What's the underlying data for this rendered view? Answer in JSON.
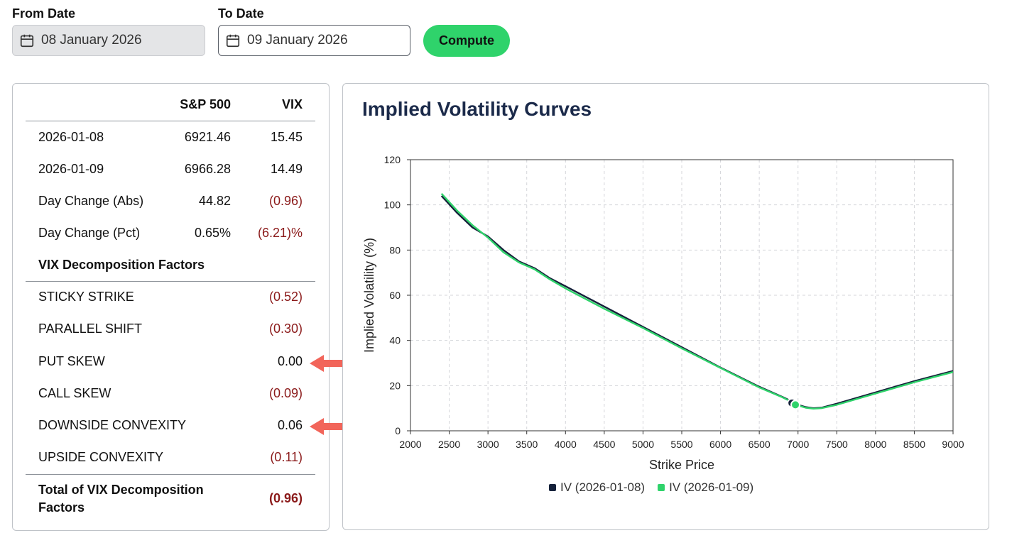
{
  "controls": {
    "from_label": "From Date",
    "from_value": "08 January 2026",
    "to_label": "To Date",
    "to_value": "09 January 2026",
    "compute_label": "Compute"
  },
  "table": {
    "headers": [
      "",
      "S&P 500",
      "VIX"
    ],
    "rows": [
      {
        "label": "2026-01-08",
        "sp": "6921.46",
        "vix": "15.45"
      },
      {
        "label": "2026-01-09",
        "sp": "6966.28",
        "vix": "14.49"
      },
      {
        "label": "Day Change (Abs)",
        "sp": "44.82",
        "vix": "(0.96)"
      },
      {
        "label": "Day Change (Pct)",
        "sp": "0.65%",
        "vix": "(6.21)%"
      }
    ],
    "factors_heading": "VIX Decomposition Factors",
    "factors": [
      {
        "label": "STICKY STRIKE",
        "value": "(0.52)"
      },
      {
        "label": "PARALLEL SHIFT",
        "value": "(0.30)"
      },
      {
        "label": "PUT SKEW",
        "value": "0.00"
      },
      {
        "label": "CALL SKEW",
        "value": "(0.09)"
      },
      {
        "label": "DOWNSIDE CONVEXITY",
        "value": "0.06"
      },
      {
        "label": "UPSIDE CONVEXITY",
        "value": "(0.11)"
      }
    ],
    "total_label_line1": "Total of VIX Decomposition",
    "total_label_line2": "Factors",
    "total_value": "(0.96)"
  },
  "colors": {
    "negative": "#8b1a1a",
    "accent_green": "#2fd36b",
    "series_dark": "#15213a",
    "series_green": "#2fd36b",
    "arrow": "#f2655a"
  },
  "chart_data": {
    "type": "line",
    "title": "Implied Volatility Curves",
    "xlabel": "Strike Price",
    "ylabel": "Implied Volatility (%)",
    "xlim": [
      2000,
      9000
    ],
    "ylim": [
      0,
      120
    ],
    "x_ticks": [
      2000,
      2500,
      3000,
      3500,
      4000,
      4500,
      5000,
      5500,
      6000,
      6500,
      7000,
      7500,
      8000,
      8500,
      9000
    ],
    "y_ticks": [
      0,
      20,
      40,
      60,
      80,
      100,
      120
    ],
    "grid": true,
    "legend_position": "bottom",
    "series": [
      {
        "name": "IV (2026-01-08)",
        "color": "#15213a",
        "x": [
          2400,
          2600,
          2800,
          3000,
          3200,
          3400,
          3600,
          3800,
          4000,
          4500,
          5000,
          5500,
          6000,
          6500,
          6800,
          6950,
          7000,
          7100,
          7200,
          7300,
          7500,
          8000,
          8500,
          9000
        ],
        "y": [
          104,
          96.5,
          90,
          86,
          80,
          75,
          72,
          67.5,
          64,
          55,
          46,
          37,
          28,
          19.5,
          15,
          12.5,
          11.5,
          10.5,
          10,
          10.2,
          12,
          17,
          22,
          26.5
        ],
        "marker": {
          "x": 6921.46,
          "y": 12.3
        }
      },
      {
        "name": "IV (2026-01-09)",
        "color": "#2fd36b",
        "x": [
          2400,
          2600,
          2800,
          3000,
          3200,
          3400,
          3600,
          3800,
          4000,
          4500,
          5000,
          5500,
          6000,
          6500,
          6800,
          6950,
          7000,
          7100,
          7200,
          7300,
          7500,
          8000,
          8500,
          9000
        ],
        "y": [
          105,
          97.5,
          91,
          85.5,
          79,
          74.5,
          71.5,
          67,
          63,
          54,
          45.5,
          36.5,
          27.8,
          19.2,
          14.8,
          12.2,
          11.2,
          10.2,
          9.8,
          10,
          11.5,
          16.5,
          21.5,
          26
        ],
        "marker": {
          "x": 6966.28,
          "y": 11.5
        }
      }
    ]
  }
}
